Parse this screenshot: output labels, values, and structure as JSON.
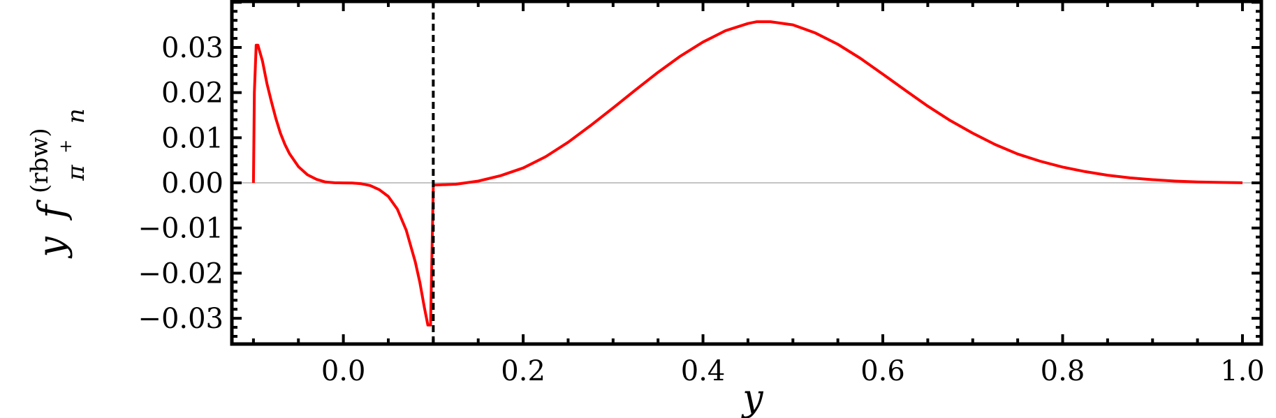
{
  "chart_data": {
    "type": "line",
    "title": "",
    "xlabel": "y",
    "ylabel": {
      "prefix": "y",
      "func": "f",
      "superscript": "(rbw)",
      "subscript_base": "π",
      "subscript_sup": "+",
      "subscript_tail": "n"
    },
    "xlim": [
      -0.124,
      1.021
    ],
    "ylim": [
      -0.0357,
      0.0402
    ],
    "xticks": [
      0.0,
      0.2,
      0.4,
      0.6,
      0.8,
      1.0
    ],
    "xtick_labels": [
      "0.0",
      "0.2",
      "0.4",
      "0.6",
      "0.8",
      "1.0"
    ],
    "yticks": [
      0.03,
      0.02,
      0.01,
      0.0,
      -0.01,
      -0.02,
      -0.03
    ],
    "ytick_labels": [
      "0.03",
      "0.02",
      "0.01",
      "0.00",
      "−0.01",
      "−0.02",
      "−0.03"
    ],
    "grid": false,
    "zero_line": true,
    "vertical_marker": {
      "x": 0.1,
      "style": "dashed",
      "color": "#000000"
    },
    "series": [
      {
        "color": "#ff0000",
        "segments": [
          [
            [
              -0.1,
              0
            ],
            [
              -0.099,
              0.02
            ],
            [
              -0.097,
              0.0305
            ],
            [
              -0.095,
              0.0305
            ],
            [
              -0.09,
              0.027
            ],
            [
              -0.085,
              0.022
            ],
            [
              -0.08,
              0.018
            ],
            [
              -0.075,
              0.0142
            ],
            [
              -0.07,
              0.011
            ],
            [
              -0.065,
              0.0085
            ],
            [
              -0.06,
              0.0065
            ],
            [
              -0.05,
              0.0036
            ],
            [
              -0.04,
              0.0018
            ],
            [
              -0.03,
              0.0008
            ],
            [
              -0.02,
              0.0002
            ],
            [
              -0.01,
              3e-05
            ],
            [
              0.0,
              0
            ],
            [
              0.01,
              -3e-05
            ],
            [
              0.02,
              -0.0002
            ],
            [
              0.03,
              -0.0006
            ],
            [
              0.04,
              -0.0015
            ],
            [
              0.05,
              -0.003
            ],
            [
              0.06,
              -0.0058
            ],
            [
              0.07,
              -0.0105
            ],
            [
              0.08,
              -0.0175
            ],
            [
              0.085,
              -0.022
            ],
            [
              0.09,
              -0.0275
            ],
            [
              0.094,
              -0.0315
            ],
            [
              0.097,
              -0.0315
            ],
            [
              0.1,
              -0.0005
            ]
          ],
          [
            [
              0.1,
              -0.0005
            ],
            [
              0.125,
              -0.0003
            ],
            [
              0.15,
              0.0004
            ],
            [
              0.175,
              0.0016
            ],
            [
              0.2,
              0.0033
            ],
            [
              0.225,
              0.0058
            ],
            [
              0.25,
              0.009
            ],
            [
              0.275,
              0.0127
            ],
            [
              0.3,
              0.0166
            ],
            [
              0.325,
              0.0206
            ],
            [
              0.35,
              0.0245
            ],
            [
              0.375,
              0.0281
            ],
            [
              0.4,
              0.0312
            ],
            [
              0.425,
              0.0337
            ],
            [
              0.45,
              0.0353
            ],
            [
              0.46,
              0.0357
            ],
            [
              0.475,
              0.0357
            ],
            [
              0.5,
              0.035
            ],
            [
              0.525,
              0.0332
            ],
            [
              0.55,
              0.0307
            ],
            [
              0.575,
              0.0276
            ],
            [
              0.6,
              0.0241
            ],
            [
              0.625,
              0.0205
            ],
            [
              0.65,
              0.017
            ],
            [
              0.675,
              0.0138
            ],
            [
              0.7,
              0.011
            ],
            [
              0.725,
              0.0085
            ],
            [
              0.75,
              0.0064
            ],
            [
              0.775,
              0.0048
            ],
            [
              0.8,
              0.0035
            ],
            [
              0.825,
              0.0025
            ],
            [
              0.85,
              0.0017
            ],
            [
              0.875,
              0.0011
            ],
            [
              0.9,
              0.0007
            ],
            [
              0.925,
              0.0004
            ],
            [
              0.95,
              0.0002
            ],
            [
              0.975,
              0.0001
            ],
            [
              1.0,
              3e-05
            ]
          ]
        ]
      }
    ]
  }
}
